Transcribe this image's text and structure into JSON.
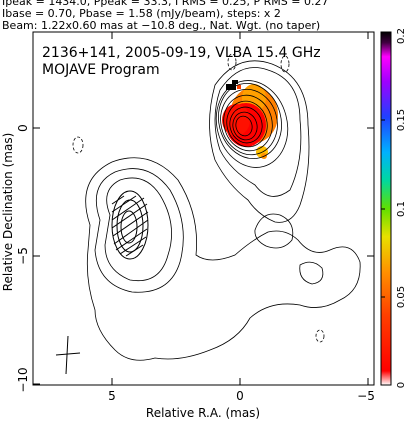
{
  "header": {
    "line1": "Ipeak = 1434.0, Ppeak = 33.3, I RMS = 0.25, P RMS = 0.27",
    "line2": "Ibase = 0.70, Pbase = 1.58 (mJy/beam), steps: x 2",
    "line3": "Beam: 1.22x0.60 mas at −10.8 deg., Nat. Wgt. (no taper)"
  },
  "panel": {
    "title": "2136+141, 2005-09-19, VLBA 15.4 GHz",
    "subtitle": "MOJAVE Program"
  },
  "axes": {
    "xlabel": "Relative R.A. (mas)",
    "ylabel": "Relative Declination (mas)",
    "xticks": [
      "5",
      "0",
      "−5"
    ],
    "yticks": [
      "0",
      "−5",
      "−10"
    ]
  },
  "colorbar": {
    "ticks": [
      "0",
      "0.05",
      "0.1",
      "0.15",
      "0.2"
    ]
  },
  "colors": {
    "red": "#ff0000",
    "orange": "#ff8000",
    "yellow": "#ffd000",
    "black": "#000000"
  }
}
